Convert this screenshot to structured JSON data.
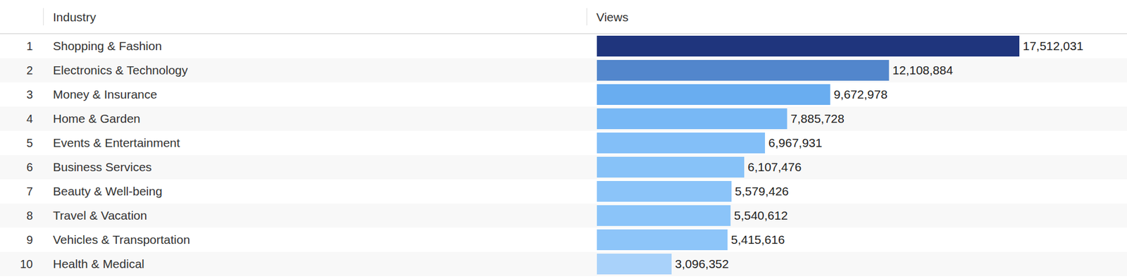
{
  "chart_data": {
    "type": "bar",
    "orientation": "horizontal",
    "ylabel": "Industry",
    "xlabel": "Views",
    "ranks": [
      1,
      2,
      3,
      4,
      5,
      6,
      7,
      8,
      9,
      10
    ],
    "categories": [
      "Shopping & Fashion",
      "Electronics & Technology",
      "Money & Insurance",
      "Home & Garden",
      "Events & Entertainment",
      "Business Services",
      "Beauty & Well-being",
      "Travel & Vacation",
      "Vehicles & Transportation",
      "Health & Medical"
    ],
    "values": [
      17512031,
      12108884,
      9672978,
      7885728,
      6967931,
      6107476,
      5579426,
      5540612,
      5415616,
      3096352
    ],
    "value_labels": [
      "17,512,031",
      "12,108,884",
      "9,672,978",
      "7,885,728",
      "6,967,931",
      "6,107,476",
      "5,579,426",
      "5,540,612",
      "5,415,616",
      "3,096,352"
    ],
    "colors": [
      "#1f357d",
      "#5286cc",
      "#69adf0",
      "#78b8f5",
      "#83bff8",
      "#87c2f8",
      "#8bc4f9",
      "#8bc4f9",
      "#8dc5f9",
      "#a9d2fa"
    ],
    "xlim": [
      0,
      17512031
    ],
    "data_labels": true,
    "tick_labels": false,
    "grid": false
  }
}
